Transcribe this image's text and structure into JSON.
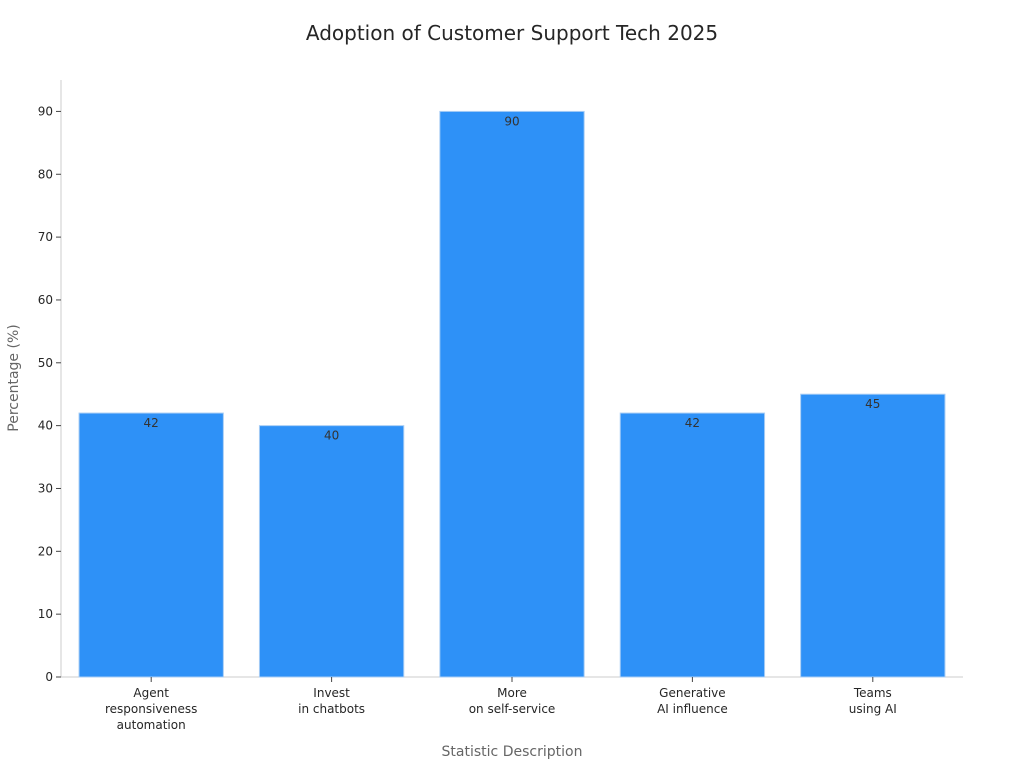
{
  "chart_data": {
    "type": "bar",
    "title": "Adoption of Customer Support Tech 2025",
    "xlabel": "Statistic Description",
    "ylabel": "Percentage (%)",
    "categories": [
      [
        "Agent",
        "responsiveness",
        "automation"
      ],
      [
        "Invest",
        "in chatbots"
      ],
      [
        "More",
        "on self-service"
      ],
      [
        "Generative",
        "AI influence"
      ],
      [
        "Teams",
        "using AI"
      ]
    ],
    "values": [
      42,
      40,
      90,
      42,
      45
    ],
    "ylim": [
      0,
      95
    ],
    "yticks": [
      0,
      10,
      20,
      30,
      40,
      50,
      60,
      70,
      80,
      90
    ],
    "bar_color": "#2e91f7",
    "bar_edge_color": "#a8cdf5",
    "grid": false,
    "legend": "none"
  }
}
